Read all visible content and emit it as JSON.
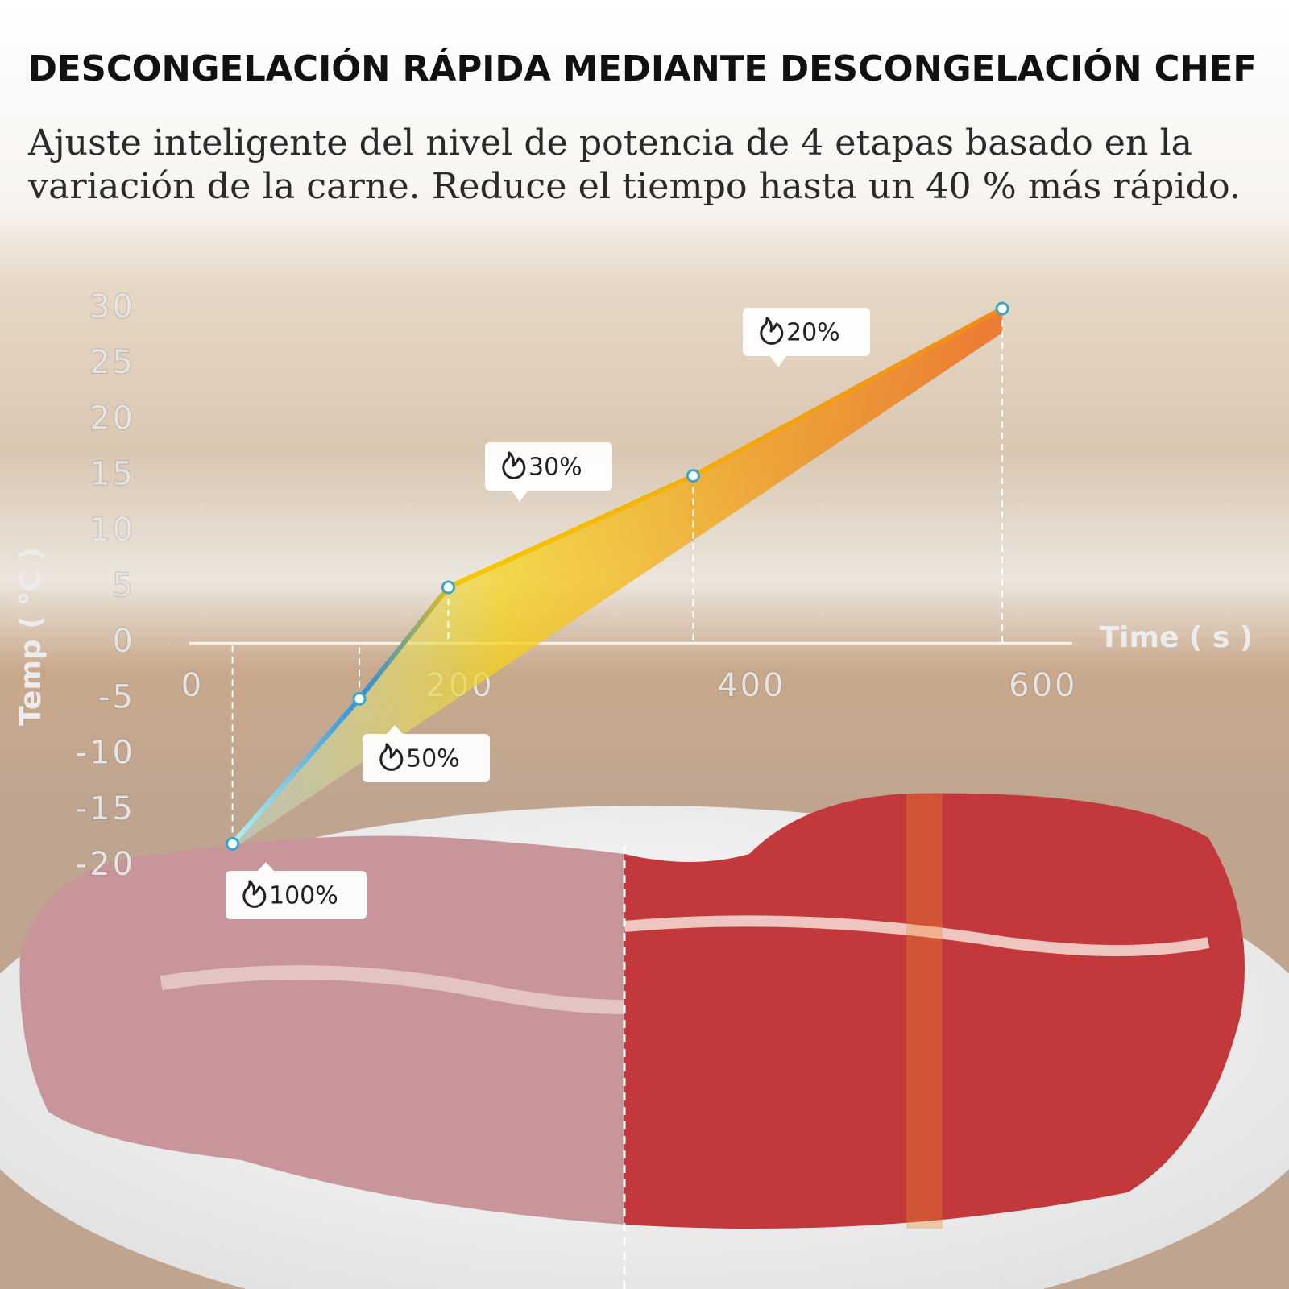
{
  "chart_data": {
    "type": "line",
    "title": "DESCONGELACIÓN RÁPIDA MEDIANTE DESCONGELACIÓN CHEF",
    "subtitle": [
      "Ajuste inteligente del nivel de potencia de 4 etapas basado en la",
      "variación de la carne. Reduce el tiempo hasta un 40 % más rápido."
    ],
    "x_label": "Time ( s )",
    "y_label": "Temp ( ℃ )",
    "x": [
      44,
      131,
      192,
      360,
      572
    ],
    "values": [
      -18,
      -5,
      5,
      15,
      30
    ],
    "line_colors": [
      "#b4f1ee",
      "#2f8fd8",
      "#f7c800",
      "#f08a1c"
    ],
    "marker_color": "#3aa6c8",
    "annotations": [
      "100%",
      "50%",
      "30%",
      "20%"
    ],
    "xlim": [
      0,
      620
    ],
    "xticks": [
      0,
      200,
      400,
      600
    ],
    "ylim": [
      -20,
      30
    ],
    "yticks": [
      30,
      25,
      20,
      15,
      10,
      5,
      0,
      -5,
      -10,
      -15,
      -20
    ]
  }
}
